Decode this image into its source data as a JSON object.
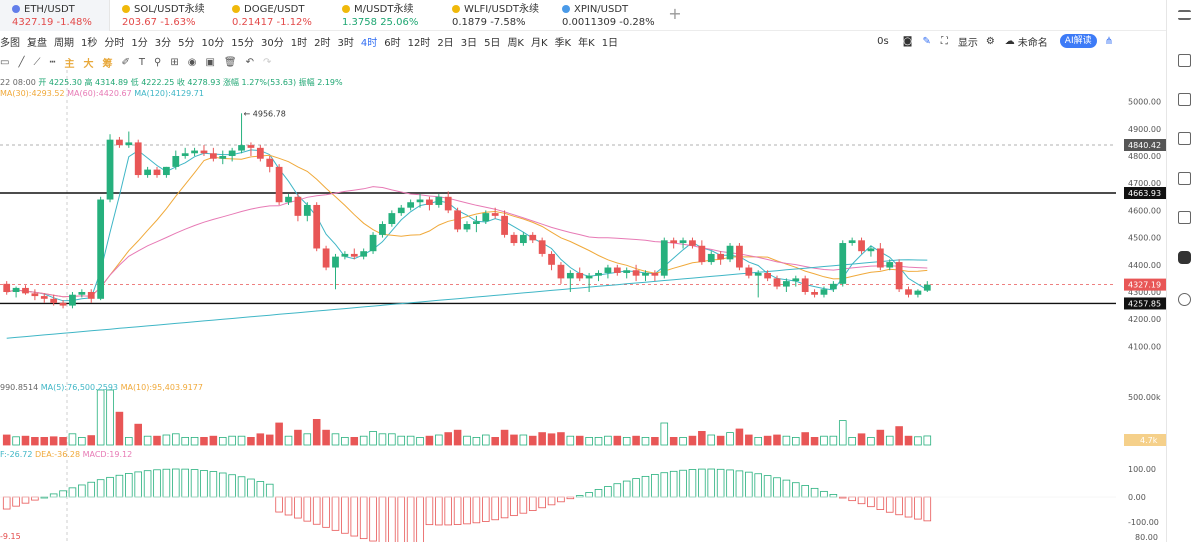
{
  "tabs": [
    {
      "symbol": "ETH/USDT",
      "price": "4327.19",
      "change": "-1.48%",
      "dir": "down",
      "icon_color": "#627eea"
    },
    {
      "symbol": "SOL/USDT永续",
      "price": "203.67",
      "change": "-1.63%",
      "dir": "down",
      "icon_color": "#f0b90b"
    },
    {
      "symbol": "DOGE/USDT",
      "price": "0.21417",
      "change": "-1.12%",
      "dir": "down",
      "icon_color": "#f0b90b"
    },
    {
      "symbol": "M/USDT永续",
      "price": "1.3758",
      "change": "25.06%",
      "dir": "up",
      "icon_color": "#f0b90b"
    },
    {
      "symbol": "WLFI/USDT永续",
      "price": "0.1879",
      "change": "-7.58%",
      "dir": "neutral",
      "icon_color": "#f0b90b"
    },
    {
      "symbol": "XPIN/USDT",
      "price": "0.0011309",
      "change": "-0.28%",
      "dir": "neutral",
      "icon_color": "#4a9ae8"
    }
  ],
  "toolbar": {
    "multi": "多图",
    "replay": "复盘",
    "period": "周期",
    "timeframes": [
      "1秒",
      "分时",
      "1分",
      "3分",
      "5分",
      "10分",
      "15分",
      "30分",
      "1时",
      "2时",
      "3时",
      "4时",
      "6时",
      "12时",
      "2日",
      "3日",
      "5日",
      "周K",
      "月K",
      "季K",
      "年K",
      "1日"
    ],
    "active_tf": "4时",
    "seconds": "0s",
    "display": "显示",
    "unnamed": "未命名",
    "ai": "AI解读"
  },
  "drawbar": {
    "labels": [
      "主",
      "大",
      "筹"
    ]
  },
  "ohlc": {
    "time": "22 08:00",
    "open": "开 4225.30",
    "high": "高 4314.89",
    "low": "低 4222.25",
    "close": "收 4278.93",
    "amp": "涨幅 1.27%(53.63)",
    "range": "振幅 2.19%"
  },
  "ma": {
    "ma30": "MA(30):4293.52",
    "ma60": "MA(60):4420.67",
    "ma120": "MA(120):4129.71"
  },
  "vol": {
    "vol": "990.8514",
    "ma5": "MA(5):76,500.2593",
    "ma10": "MA(10):95,403.9177"
  },
  "macd": {
    "dif": "F:-26.72",
    "dea": "DEA:-36.28",
    "macd": "MACD:19.12"
  },
  "bottom_label": "-9.15",
  "price_axis": {
    "ticks": [
      "5000.00",
      "4900.00",
      "4800.00",
      "4700.00",
      "4600.00",
      "4500.00",
      "4400.00",
      "4300.00",
      "4200.00",
      "4100.00"
    ],
    "min": 4050,
    "max": 5050
  },
  "vol_axis": {
    "ticks": [
      "500.00k"
    ],
    "current": "4.7k"
  },
  "macd_axis": {
    "ticks": [
      "100.00",
      "0.00",
      "-100.00"
    ]
  },
  "price_tags": {
    "crosshair": "4840.42",
    "resistance": "4663.93",
    "current": "4327.19",
    "support": "4257.85"
  },
  "high_marker": "4956.78",
  "colors": {
    "up": "#26b07d",
    "down": "#e85656",
    "ma_orange": "#f0a93a",
    "ma_pink": "#e77ab5",
    "ma_cyan": "#3fb6c6",
    "active": "#2f6cf2"
  },
  "candles": [
    [
      4330,
      4340,
      4290,
      4300
    ],
    [
      4300,
      4320,
      4280,
      4315
    ],
    [
      4315,
      4325,
      4290,
      4295
    ],
    [
      4295,
      4310,
      4270,
      4285
    ],
    [
      4285,
      4295,
      4260,
      4275
    ],
    [
      4275,
      4290,
      4250,
      4260
    ],
    [
      4260,
      4270,
      4240,
      4250
    ],
    [
      4250,
      4300,
      4240,
      4290
    ],
    [
      4290,
      4310,
      4280,
      4300
    ],
    [
      4300,
      4310,
      4260,
      4275
    ],
    [
      4275,
      4650,
      4270,
      4640
    ],
    [
      4640,
      4880,
      4630,
      4860
    ],
    [
      4860,
      4870,
      4830,
      4840
    ],
    [
      4840,
      4890,
      4830,
      4850
    ],
    [
      4850,
      4860,
      4720,
      4730
    ],
    [
      4730,
      4760,
      4720,
      4750
    ],
    [
      4750,
      4760,
      4720,
      4730
    ],
    [
      4730,
      4760,
      4720,
      4760
    ],
    [
      4760,
      4820,
      4750,
      4800
    ],
    [
      4800,
      4830,
      4790,
      4810
    ],
    [
      4810,
      4830,
      4800,
      4820
    ],
    [
      4820,
      4840,
      4800,
      4810
    ],
    [
      4810,
      4830,
      4780,
      4790
    ],
    [
      4790,
      4820,
      4770,
      4800
    ],
    [
      4800,
      4830,
      4780,
      4820
    ],
    [
      4820,
      4957,
      4810,
      4840
    ],
    [
      4840,
      4850,
      4800,
      4830
    ],
    [
      4830,
      4840,
      4780,
      4790
    ],
    [
      4790,
      4800,
      4740,
      4760
    ],
    [
      4760,
      4770,
      4620,
      4630
    ],
    [
      4630,
      4660,
      4620,
      4650
    ],
    [
      4650,
      4660,
      4560,
      4580
    ],
    [
      4580,
      4630,
      4560,
      4620
    ],
    [
      4620,
      4630,
      4450,
      4460
    ],
    [
      4460,
      4470,
      4380,
      4390
    ],
    [
      4390,
      4440,
      4310,
      4430
    ],
    [
      4430,
      4450,
      4420,
      4440
    ],
    [
      4440,
      4460,
      4420,
      4430
    ],
    [
      4430,
      4460,
      4420,
      4450
    ],
    [
      4450,
      4520,
      4440,
      4510
    ],
    [
      4510,
      4560,
      4500,
      4550
    ],
    [
      4550,
      4600,
      4540,
      4590
    ],
    [
      4590,
      4620,
      4580,
      4610
    ],
    [
      4610,
      4640,
      4600,
      4630
    ],
    [
      4630,
      4660,
      4610,
      4640
    ],
    [
      4640,
      4650,
      4600,
      4620
    ],
    [
      4620,
      4660,
      4610,
      4650
    ],
    [
      4650,
      4670,
      4590,
      4600
    ],
    [
      4600,
      4610,
      4520,
      4530
    ],
    [
      4530,
      4560,
      4520,
      4550
    ],
    [
      4550,
      4580,
      4520,
      4560
    ],
    [
      4560,
      4600,
      4550,
      4590
    ],
    [
      4590,
      4610,
      4570,
      4580
    ],
    [
      4580,
      4600,
      4500,
      4510
    ],
    [
      4510,
      4520,
      4470,
      4480
    ],
    [
      4480,
      4520,
      4470,
      4510
    ],
    [
      4510,
      4520,
      4480,
      4490
    ],
    [
      4490,
      4500,
      4430,
      4440
    ],
    [
      4440,
      4450,
      4380,
      4400
    ],
    [
      4400,
      4410,
      4330,
      4350
    ],
    [
      4350,
      4380,
      4300,
      4370
    ],
    [
      4370,
      4390,
      4340,
      4350
    ],
    [
      4350,
      4370,
      4300,
      4360
    ],
    [
      4360,
      4380,
      4340,
      4370
    ],
    [
      4370,
      4400,
      4350,
      4390
    ],
    [
      4390,
      4400,
      4360,
      4370
    ],
    [
      4370,
      4390,
      4350,
      4380
    ],
    [
      4380,
      4400,
      4340,
      4360
    ],
    [
      4360,
      4380,
      4340,
      4370
    ],
    [
      4370,
      4380,
      4340,
      4360
    ],
    [
      4360,
      4500,
      4350,
      4490
    ],
    [
      4490,
      4500,
      4460,
      4480
    ],
    [
      4480,
      4500,
      4460,
      4490
    ],
    [
      4490,
      4500,
      4460,
      4470
    ],
    [
      4470,
      4490,
      4400,
      4410
    ],
    [
      4410,
      4450,
      4400,
      4440
    ],
    [
      4440,
      4450,
      4400,
      4420
    ],
    [
      4420,
      4480,
      4410,
      4470
    ],
    [
      4470,
      4480,
      4380,
      4390
    ],
    [
      4390,
      4400,
      4350,
      4360
    ],
    [
      4360,
      4380,
      4280,
      4370
    ],
    [
      4370,
      4380,
      4340,
      4350
    ],
    [
      4350,
      4360,
      4310,
      4320
    ],
    [
      4320,
      4350,
      4300,
      4340
    ],
    [
      4340,
      4360,
      4320,
      4350
    ],
    [
      4350,
      4360,
      4290,
      4300
    ],
    [
      4300,
      4310,
      4280,
      4290
    ],
    [
      4290,
      4320,
      4280,
      4310
    ],
    [
      4310,
      4340,
      4300,
      4330
    ],
    [
      4330,
      4490,
      4320,
      4480
    ],
    [
      4480,
      4500,
      4470,
      4490
    ],
    [
      4490,
      4500,
      4440,
      4450
    ],
    [
      4450,
      4470,
      4430,
      4460
    ],
    [
      4460,
      4480,
      4380,
      4390
    ],
    [
      4390,
      4420,
      4380,
      4410
    ],
    [
      4410,
      4420,
      4300,
      4310
    ],
    [
      4310,
      4320,
      4280,
      4290
    ],
    [
      4290,
      4310,
      4280,
      4305
    ],
    [
      4305,
      4340,
      4300,
      4327
    ]
  ]
}
